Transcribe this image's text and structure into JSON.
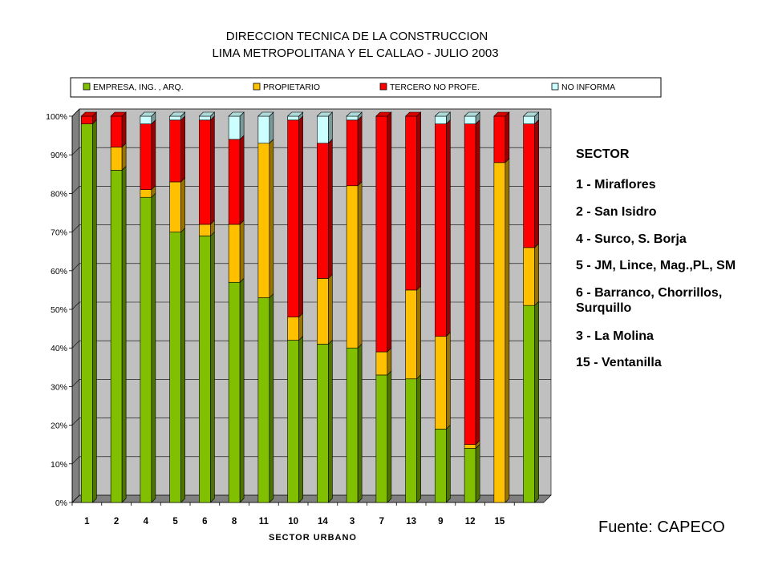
{
  "chart_data": {
    "type": "bar",
    "stacked": true,
    "percent": true,
    "title": "DIRECCION TECNICA DE LA CONSTRUCCION",
    "subtitle": "LIMA METROPOLITANA Y EL CALLAO - JULIO 2003",
    "xlabel": "SECTOR URBANO",
    "ylabel": "",
    "ylim": [
      0,
      100
    ],
    "yticks": [
      "0%",
      "10%",
      "20%",
      "30%",
      "40%",
      "50%",
      "60%",
      "70%",
      "80%",
      "90%",
      "100%"
    ],
    "categories": [
      "1",
      "2",
      "4",
      "5",
      "6",
      "8",
      "11",
      "10",
      "14",
      "3",
      "7",
      "13",
      "9",
      "12",
      "15",
      ""
    ],
    "series": [
      {
        "name": "EMPRESA, ING. , ARQ.",
        "color": "#80C000",
        "values": [
          98,
          86,
          79,
          70,
          69,
          57,
          53,
          42,
          41,
          40,
          33,
          32,
          19,
          14,
          0,
          51
        ]
      },
      {
        "name": "PROPIETARIO",
        "color": "#FFC000",
        "values": [
          0,
          6,
          2,
          13,
          3,
          15,
          40,
          6,
          17,
          42,
          6,
          23,
          24,
          1,
          88,
          15
        ]
      },
      {
        "name": "TERCERO NO PROFE.",
        "color": "#FF0000",
        "values": [
          2,
          8,
          17,
          16,
          27,
          22,
          0,
          51,
          35,
          17,
          61,
          45,
          55,
          83,
          12,
          32
        ]
      },
      {
        "name": "NO INFORMA",
        "color": "#CCFFFF",
        "values": [
          0,
          0,
          2,
          1,
          1,
          6,
          7,
          1,
          7,
          1,
          0,
          0,
          2,
          2,
          0,
          2
        ]
      }
    ],
    "grid": true,
    "legend_position": "top"
  },
  "sector_legend": {
    "title": "SECTOR",
    "items": [
      "1 - Miraflores",
      "2 - San Isidro",
      "4 - Surco, S. Borja",
      "5 - JM, Lince, Mag.,PL, SM",
      "6 - Barranco, Chorrillos,",
      "Surquillo",
      "3 - La Molina",
      "15 - Ventanilla"
    ]
  },
  "source": "Fuente: CAPECO"
}
